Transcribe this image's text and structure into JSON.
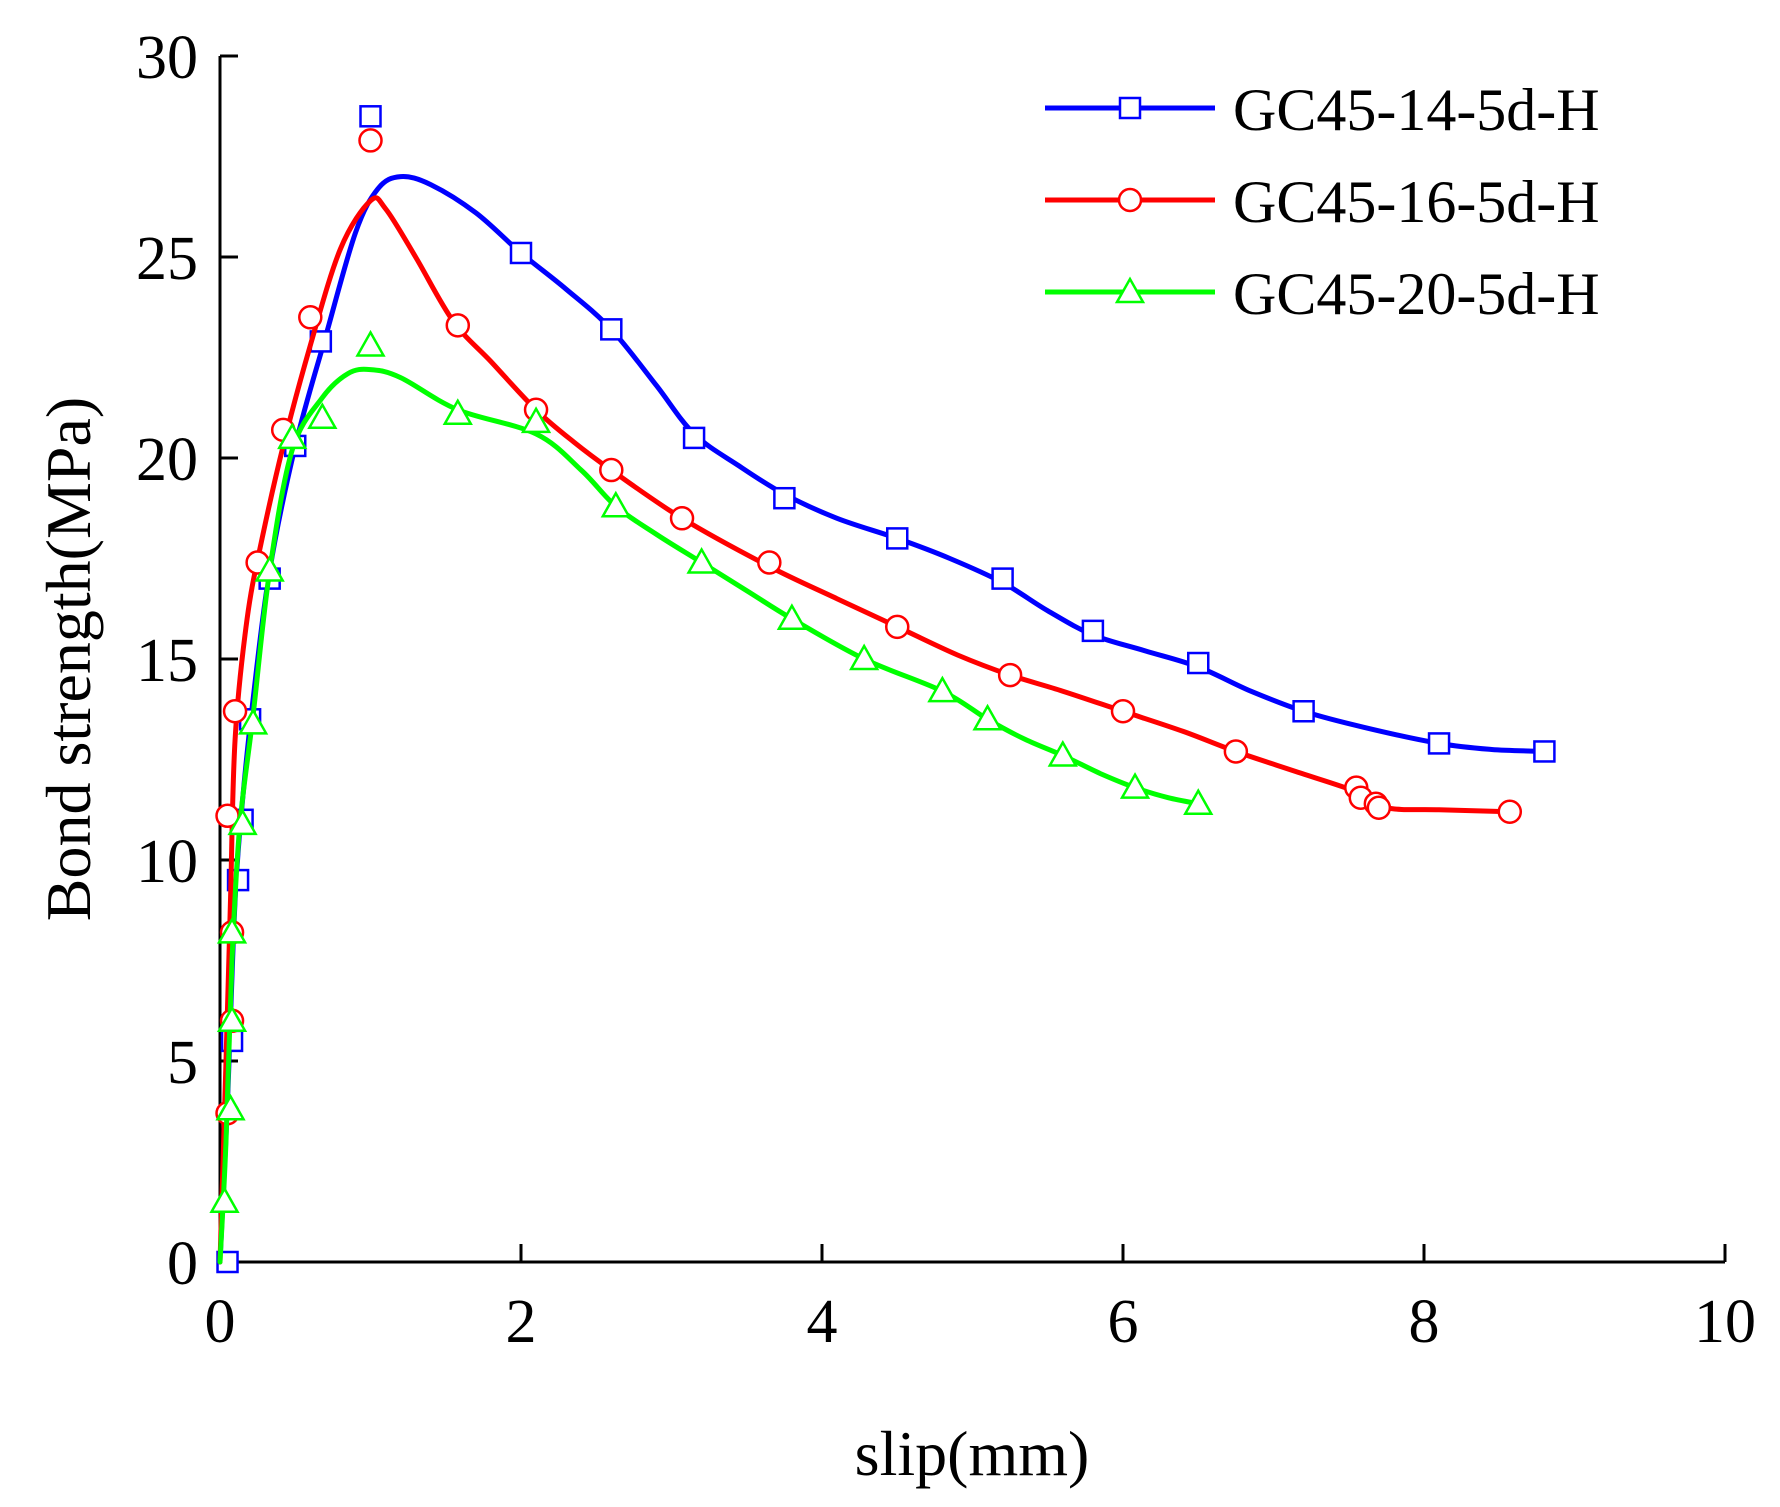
{
  "chart_data": {
    "type": "line",
    "title": "",
    "xlabel": "slip(mm)",
    "ylabel": "Bond strength(MPa)",
    "xlim": [
      0,
      10
    ],
    "ylim": [
      0,
      30
    ],
    "xticks": [
      0,
      2,
      4,
      6,
      8,
      10
    ],
    "yticks": [
      0,
      5,
      10,
      15,
      20,
      25,
      30
    ],
    "xtick_labels": [
      "0",
      "2",
      "4",
      "6",
      "8",
      "10"
    ],
    "ytick_labels": [
      "0",
      "5",
      "10",
      "15",
      "20",
      "25",
      "30"
    ],
    "grid": false,
    "legend_position": "top-right",
    "series": [
      {
        "name": "GC45-14-5d-H",
        "color": "#0000ff",
        "marker": "square",
        "markers": [
          [
            0.05,
            0
          ],
          [
            0.08,
            5.5
          ],
          [
            0.12,
            9.5
          ],
          [
            0.15,
            11.0
          ],
          [
            0.2,
            13.5
          ],
          [
            0.33,
            17.0
          ],
          [
            0.5,
            20.3
          ],
          [
            0.67,
            22.9
          ],
          [
            1.0,
            28.5
          ],
          [
            2.0,
            25.1
          ],
          [
            2.6,
            23.2
          ],
          [
            3.15,
            20.5
          ],
          [
            3.75,
            19.0
          ],
          [
            4.5,
            18.0
          ],
          [
            5.2,
            17.0
          ],
          [
            5.8,
            15.7
          ],
          [
            6.5,
            14.9
          ],
          [
            7.2,
            13.7
          ],
          [
            8.1,
            12.9
          ],
          [
            8.8,
            12.7
          ]
        ],
        "curve": [
          [
            0.0,
            0.0
          ],
          [
            0.05,
            4.0
          ],
          [
            0.1,
            9.0
          ],
          [
            0.15,
            11.5
          ],
          [
            0.22,
            14.0
          ],
          [
            0.33,
            17.2
          ],
          [
            0.5,
            20.3
          ],
          [
            0.7,
            23.0
          ],
          [
            0.9,
            25.6
          ],
          [
            1.05,
            26.7
          ],
          [
            1.2,
            27.0
          ],
          [
            1.4,
            26.8
          ],
          [
            1.7,
            26.1
          ],
          [
            2.0,
            25.1
          ],
          [
            2.3,
            24.2
          ],
          [
            2.6,
            23.2
          ],
          [
            2.9,
            21.8
          ],
          [
            3.15,
            20.6
          ],
          [
            3.45,
            19.8
          ],
          [
            3.75,
            19.1
          ],
          [
            4.1,
            18.5
          ],
          [
            4.5,
            18.0
          ],
          [
            4.85,
            17.5
          ],
          [
            5.2,
            16.9
          ],
          [
            5.5,
            16.2
          ],
          [
            5.8,
            15.6
          ],
          [
            6.15,
            15.2
          ],
          [
            6.5,
            14.8
          ],
          [
            6.85,
            14.2
          ],
          [
            7.2,
            13.7
          ],
          [
            7.6,
            13.3
          ],
          [
            8.1,
            12.9
          ],
          [
            8.45,
            12.75
          ],
          [
            8.8,
            12.7
          ]
        ]
      },
      {
        "name": "GC45-16-5d-H",
        "color": "#ff0000",
        "marker": "circle",
        "markers": [
          [
            0.05,
            3.7
          ],
          [
            0.08,
            6.0
          ],
          [
            0.08,
            8.2
          ],
          [
            0.05,
            11.1
          ],
          [
            0.1,
            13.7
          ],
          [
            0.25,
            17.4
          ],
          [
            0.42,
            20.7
          ],
          [
            0.6,
            23.5
          ],
          [
            1.0,
            27.9
          ],
          [
            1.58,
            23.3
          ],
          [
            2.1,
            21.2
          ],
          [
            2.6,
            19.7
          ],
          [
            3.07,
            18.5
          ],
          [
            3.65,
            17.4
          ],
          [
            4.5,
            15.8
          ],
          [
            5.25,
            14.6
          ],
          [
            6.0,
            13.7
          ],
          [
            6.75,
            12.7
          ],
          [
            7.55,
            11.8
          ],
          [
            7.58,
            11.55
          ],
          [
            7.68,
            11.4
          ],
          [
            7.7,
            11.3
          ],
          [
            8.57,
            11.2
          ]
        ],
        "curve": [
          [
            0.0,
            0.0
          ],
          [
            0.04,
            5.0
          ],
          [
            0.07,
            9.0
          ],
          [
            0.1,
            13.0
          ],
          [
            0.18,
            16.0
          ],
          [
            0.28,
            18.0
          ],
          [
            0.42,
            20.3
          ],
          [
            0.6,
            22.8
          ],
          [
            0.8,
            25.2
          ],
          [
            1.0,
            26.4
          ],
          [
            1.1,
            26.2
          ],
          [
            1.3,
            25.0
          ],
          [
            1.55,
            23.4
          ],
          [
            1.8,
            22.4
          ],
          [
            2.1,
            21.2
          ],
          [
            2.35,
            20.4
          ],
          [
            2.6,
            19.7
          ],
          [
            3.07,
            18.5
          ],
          [
            3.65,
            17.3
          ],
          [
            4.1,
            16.5
          ],
          [
            4.5,
            15.8
          ],
          [
            4.9,
            15.1
          ],
          [
            5.25,
            14.6
          ],
          [
            5.6,
            14.2
          ],
          [
            6.0,
            13.7
          ],
          [
            6.4,
            13.2
          ],
          [
            6.75,
            12.7
          ],
          [
            7.15,
            12.2
          ],
          [
            7.55,
            11.7
          ],
          [
            7.75,
            11.3
          ],
          [
            8.1,
            11.25
          ],
          [
            8.57,
            11.2
          ]
        ]
      },
      {
        "name": "GC45-20-5d-H",
        "color": "#00ff00",
        "marker": "triangle",
        "markers": [
          [
            0.03,
            1.5
          ],
          [
            0.07,
            3.8
          ],
          [
            0.08,
            6.0
          ],
          [
            0.08,
            8.2
          ],
          [
            0.15,
            10.9
          ],
          [
            0.22,
            13.4
          ],
          [
            0.33,
            17.2
          ],
          [
            0.48,
            20.5
          ],
          [
            0.68,
            21.0
          ],
          [
            1.0,
            22.8
          ],
          [
            1.58,
            21.1
          ],
          [
            2.1,
            20.9
          ],
          [
            2.63,
            18.8
          ],
          [
            3.2,
            17.4
          ],
          [
            3.8,
            16.0
          ],
          [
            4.28,
            15.0
          ],
          [
            4.8,
            14.2
          ],
          [
            5.1,
            13.5
          ],
          [
            5.6,
            12.6
          ],
          [
            6.08,
            11.8
          ],
          [
            6.5,
            11.4
          ]
        ],
        "curve": [
          [
            0.0,
            0.0
          ],
          [
            0.04,
            3.0
          ],
          [
            0.08,
            7.5
          ],
          [
            0.13,
            10.8
          ],
          [
            0.22,
            13.6
          ],
          [
            0.33,
            17.2
          ],
          [
            0.48,
            20.2
          ],
          [
            0.68,
            21.5
          ],
          [
            0.85,
            22.1
          ],
          [
            1.0,
            22.2
          ],
          [
            1.2,
            22.0
          ],
          [
            1.58,
            21.2
          ],
          [
            2.1,
            20.6
          ],
          [
            2.4,
            19.7
          ],
          [
            2.63,
            18.8
          ],
          [
            2.9,
            18.1
          ],
          [
            3.2,
            17.4
          ],
          [
            3.5,
            16.7
          ],
          [
            3.8,
            16.0
          ],
          [
            4.28,
            15.0
          ],
          [
            4.8,
            14.2
          ],
          [
            5.1,
            13.5
          ],
          [
            5.35,
            13.0
          ],
          [
            5.6,
            12.6
          ],
          [
            5.85,
            12.15
          ],
          [
            6.08,
            11.8
          ],
          [
            6.3,
            11.55
          ],
          [
            6.5,
            11.4
          ]
        ]
      }
    ]
  }
}
